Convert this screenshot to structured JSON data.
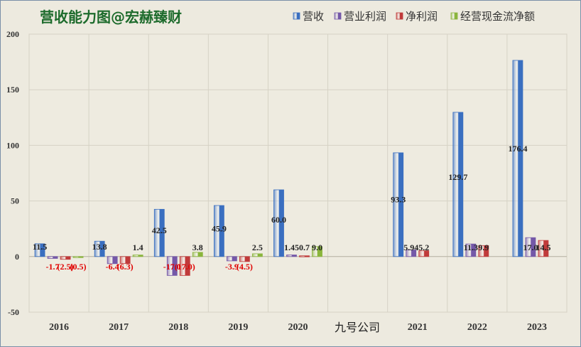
{
  "chart_data": {
    "type": "bar",
    "title": "营收能力图@宏赫臻财",
    "xlabel": "九号公司",
    "ylabel": "",
    "ylim": [
      -50,
      200
    ],
    "yticks": [
      "200",
      "150",
      "100",
      "50",
      "0",
      "-50"
    ],
    "categories": [
      "2016",
      "2017",
      "2018",
      "2019",
      "2020",
      "",
      "2021",
      "2022",
      "2023"
    ],
    "series": [
      {
        "name": "营收",
        "color": "#3a6fc0",
        "values": [
          11.5,
          13.8,
          42.5,
          45.9,
          60.0,
          null,
          93.3,
          129.7,
          176.4
        ],
        "labels": [
          "11.5",
          "13.8",
          "42.5",
          "45.9",
          "60.0",
          "",
          "93.3",
          "129.7",
          "176.4"
        ]
      },
      {
        "name": "营业利润",
        "color": "#7458a8",
        "values": [
          -1.7,
          -6.4,
          -17.0,
          -3.9,
          1.45,
          null,
          5.94,
          11.3,
          17.0
        ],
        "labels": [
          "-1.7",
          "-6.4",
          "-17.0",
          "-3.9",
          "1.45",
          "",
          "5.94",
          "11.3",
          "17.0"
        ]
      },
      {
        "name": "净利润",
        "color": "#c03a3a",
        "values": [
          -2.5,
          -6.3,
          -17.0,
          -4.5,
          0.7,
          null,
          5.2,
          9.9,
          14.5
        ],
        "labels": [
          "(2.5)",
          "(6.3)",
          "(17.0)",
          "(4.5)",
          "0.7",
          "",
          "5.2",
          "9.9",
          "14.5"
        ]
      },
      {
        "name": "经营现金流净额",
        "color": "#8ab53c",
        "values": [
          -0.5,
          1.4,
          3.8,
          2.5,
          9.0,
          null,
          null,
          null,
          null
        ],
        "labels": [
          "(0.5)",
          "1.4",
          "3.8",
          "2.5",
          "9.0",
          "",
          "",
          "",
          ""
        ]
      }
    ],
    "grid": true,
    "legend": "top-right"
  }
}
